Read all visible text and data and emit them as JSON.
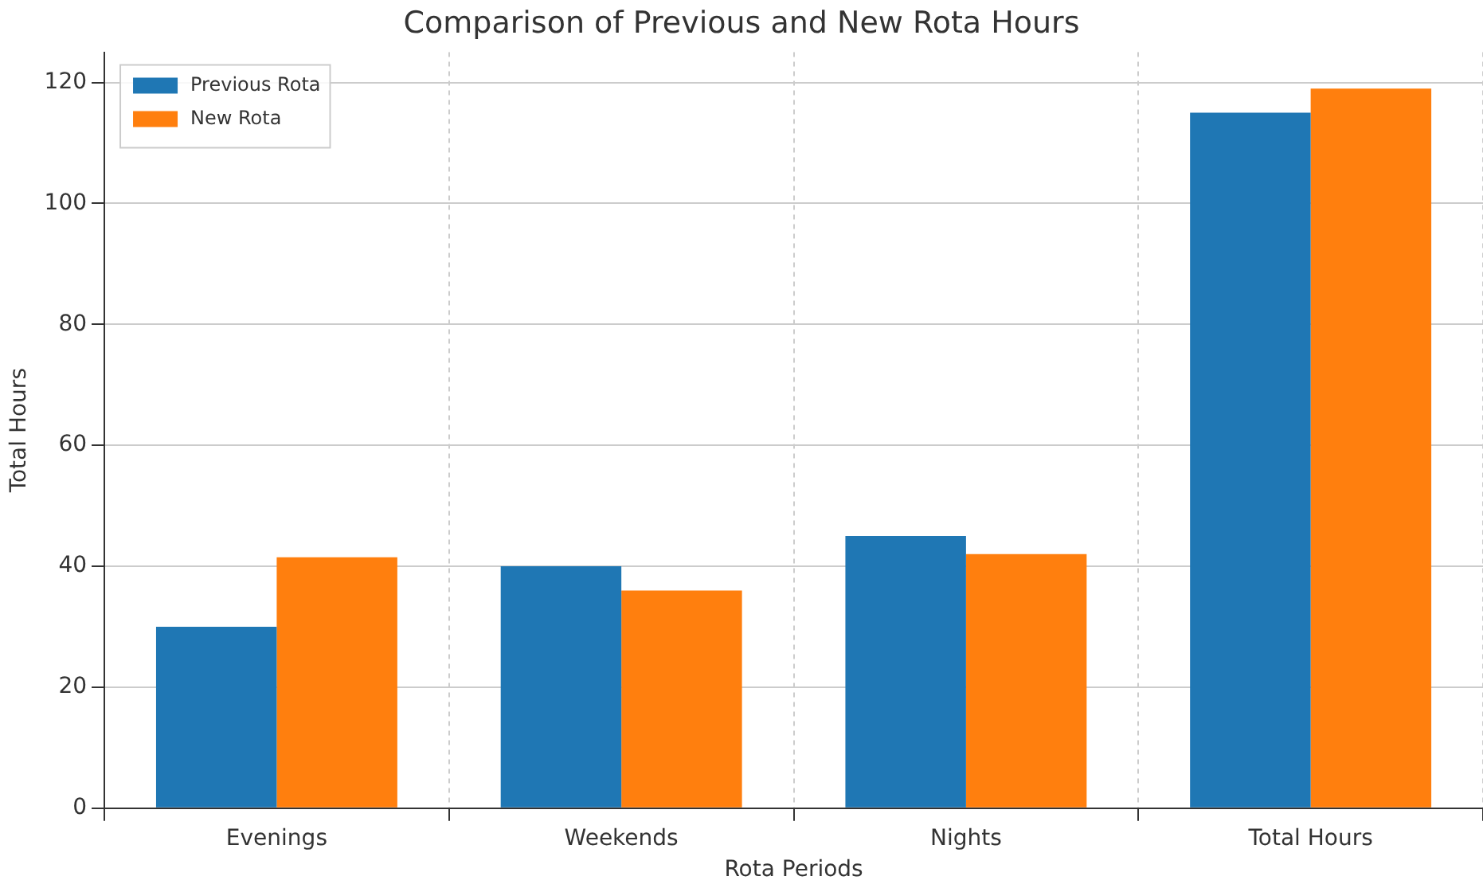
{
  "chart_data": {
    "type": "bar",
    "title": "Comparison of Previous and New Rota Hours",
    "xlabel": "Rota Periods",
    "ylabel": "Total Hours",
    "categories": [
      "Evenings",
      "Weekends",
      "Nights",
      "Total Hours"
    ],
    "series": [
      {
        "name": "Previous Rota",
        "color": "#1f77b4",
        "values": [
          30,
          40,
          45,
          115
        ]
      },
      {
        "name": "New Rota",
        "color": "#ff7f0e",
        "values": [
          41.5,
          36,
          42,
          119
        ]
      }
    ],
    "ylim": [
      0,
      125
    ],
    "yticks": [
      0,
      20,
      40,
      60,
      80,
      100,
      120
    ],
    "grid": true,
    "legend": "top left"
  }
}
